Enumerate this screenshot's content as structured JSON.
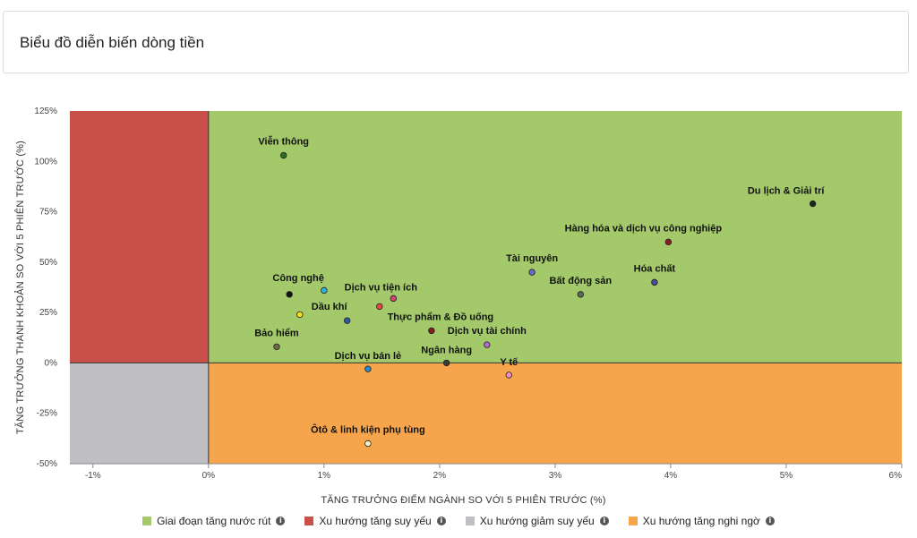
{
  "header": {
    "title": "Biểu đồ diễn biến dòng tiền"
  },
  "chart_data": {
    "type": "scatter",
    "xlabel": "TĂNG TRƯỞNG ĐIỂM NGÀNH SO VỚI 5 PHIÊN TRƯỚC (%)",
    "ylabel": "TĂNG TRƯỞNG THANH KHOẢN SO VỚI 5 PHIÊN TRƯỚC (%)",
    "xlim": [
      -1.2,
      6
    ],
    "ylim": [
      -50,
      125
    ],
    "x_ticks": [
      -1,
      0,
      1,
      2,
      3,
      4,
      5,
      6
    ],
    "x_tick_labels": [
      "-1%",
      "0%",
      "1%",
      "2%",
      "3%",
      "4%",
      "5%",
      "6%"
    ],
    "y_ticks": [
      -50,
      -25,
      0,
      25,
      50,
      75,
      100,
      125
    ],
    "y_tick_labels": [
      "-50%",
      "-25%",
      "0%",
      "25%",
      "50%",
      "75%",
      "100%",
      "125%"
    ],
    "quadrants": [
      {
        "name": "Giai đoạn tăng nước rút",
        "color": "#a3c96a"
      },
      {
        "name": "Xu hướng tăng suy yếu",
        "color": "#c94f49"
      },
      {
        "name": "Xu hướng giảm suy yếu",
        "color": "#c0c0c4"
      },
      {
        "name": "Xu hướng tăng nghi ngờ",
        "color": "#f6a54c"
      }
    ],
    "points": [
      {
        "name": "Viễn thông",
        "x": 0.65,
        "y": 103,
        "color": "#2f6b2f"
      },
      {
        "name": "Du lịch & Giải trí",
        "x": 5.23,
        "y": 79,
        "color": "#1a2a1a"
      },
      {
        "name": "Hàng hóa và dịch vụ công nghiệp",
        "x": 3.98,
        "y": 60,
        "color": "#8b1a2a"
      },
      {
        "name": "Tài nguyên",
        "x": 2.8,
        "y": 45,
        "color": "#6a6ad0"
      },
      {
        "name": "Hóa chất",
        "x": 3.86,
        "y": 40,
        "color": "#4a4a9a"
      },
      {
        "name": "Bất động sản",
        "x": 3.22,
        "y": 34,
        "color": "#5a6a5a"
      },
      {
        "name": "Công nghệ",
        "x": 0.7,
        "y": 34,
        "color": "#111111"
      },
      {
        "name": "",
        "x": 1.0,
        "y": 36,
        "color": "#28b8e0"
      },
      {
        "name": "Dịch vụ tiện ích",
        "x": 1.6,
        "y": 32,
        "color": "#d94070"
      },
      {
        "name": "",
        "x": 1.48,
        "y": 28,
        "color": "#e84a3a"
      },
      {
        "name": "",
        "x": 0.79,
        "y": 24,
        "color": "#f4e020"
      },
      {
        "name": "Dầu khí",
        "x": 1.2,
        "y": 21,
        "color": "#2a5aa8"
      },
      {
        "name": "Thực phẩm & Đồ uống",
        "x": 1.93,
        "y": 16,
        "color": "#8a1a1a"
      },
      {
        "name": "Dịch vụ tài chính",
        "x": 2.41,
        "y": 9,
        "color": "#b06ad0"
      },
      {
        "name": "Bảo hiểm",
        "x": 0.59,
        "y": 8,
        "color": "#6a6a4a"
      },
      {
        "name": "Ngân hàng",
        "x": 2.06,
        "y": 0,
        "color": "#3a3a3a"
      },
      {
        "name": "Dịch vụ bán lẻ",
        "x": 1.38,
        "y": -3,
        "color": "#2a8ac8"
      },
      {
        "name": "Y tế",
        "x": 2.6,
        "y": -6,
        "color": "#e890c0"
      },
      {
        "name": "Ôtô & linh kiện phụ tùng",
        "x": 1.38,
        "y": -40,
        "color": "#f8f4c8"
      }
    ]
  }
}
